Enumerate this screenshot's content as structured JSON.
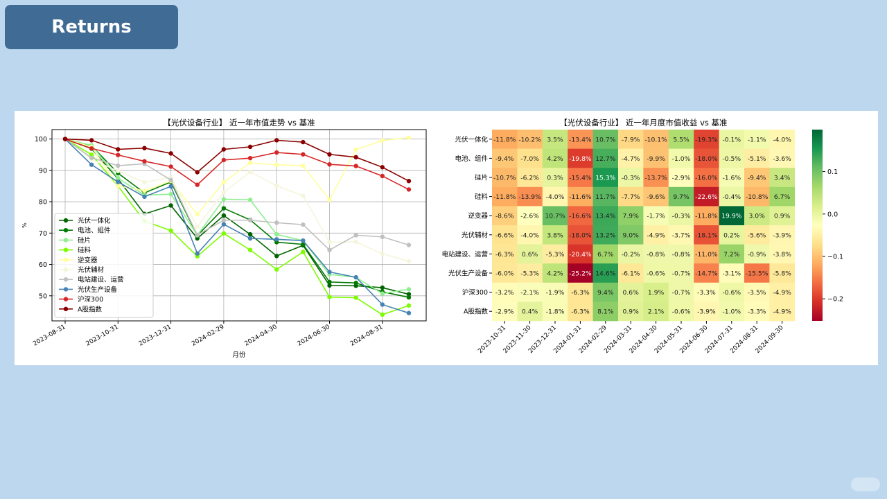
{
  "header": {
    "title": "Returns"
  },
  "chart_data": [
    {
      "type": "line",
      "title": "【光伏设备行业】 近一年市值走势 vs 基准",
      "xlabel": "月份",
      "ylabel": "%",
      "ylim": [
        42,
        103
      ],
      "yticks": [
        50,
        60,
        70,
        80,
        90,
        100
      ],
      "x": [
        "2023-08-31",
        "2023-09-30",
        "2023-10-31",
        "2023-11-30",
        "2023-12-31",
        "2024-01-31",
        "2024-02-29",
        "2024-03-31",
        "2024-04-30",
        "2024-05-31",
        "2024-06-30",
        "2024-07-31",
        "2024-08-31",
        "2024-09-30"
      ],
      "xticks": [
        "2023-08-31",
        "2023-10-31",
        "2023-12-31",
        "2024-02-29",
        "2024-04-30",
        "2024-06-30",
        "2024-08-31"
      ],
      "grid": true,
      "legend_position": "lower-left",
      "series": [
        {
          "name": "光伏一体化",
          "color": "#006400",
          "values": [
            100,
            96.9,
            87.3,
            76.1,
            78.8,
            68.3,
            75.6,
            69.6,
            62.7,
            66.1,
            53.3,
            53.2,
            52.6,
            50.5
          ]
        },
        {
          "name": "电池、组件",
          "color": "#007a00",
          "values": [
            100,
            97.8,
            89.1,
            82.8,
            86.3,
            69.2,
            77.9,
            74.2,
            67.1,
            66.4,
            54.4,
            54.1,
            51.3,
            49.5
          ]
        },
        {
          "name": "硅片",
          "color": "#90ee90",
          "values": [
            100,
            98.0,
            87.5,
            82.1,
            82.4,
            69.3,
            80.8,
            80.6,
            69.6,
            67.6,
            56.8,
            55.9,
            50.7,
            52.1
          ]
        },
        {
          "name": "硅料",
          "color": "#7cfc00",
          "values": [
            100,
            95.0,
            85.0,
            73.8,
            70.8,
            62.6,
            69.9,
            64.6,
            58.4,
            64.0,
            49.6,
            49.4,
            44.0,
            46.9
          ]
        },
        {
          "name": "逆变器",
          "color": "#ffffa0",
          "values": [
            100,
            97.5,
            85.0,
            83.5,
            86.6,
            76.0,
            86.2,
            92.4,
            91.8,
            91.5,
            80.6,
            96.6,
            99.5,
            100.4
          ]
        },
        {
          "name": "光伏辅材",
          "color": "#f5f5dc",
          "values": [
            100,
            93.5,
            89.8,
            86.2,
            87.8,
            72.0,
            83.0,
            89.5,
            85.1,
            81.9,
            67.1,
            67.2,
            63.4,
            61.0
          ]
        },
        {
          "name": "电站建设、运营",
          "color": "#c0c0c0",
          "values": [
            100,
            94.0,
            91.5,
            92.1,
            86.9,
            69.4,
            74.1,
            74.1,
            73.3,
            72.7,
            64.6,
            69.3,
            68.8,
            66.2
          ]
        },
        {
          "name": "光伏生产设备",
          "color": "#4682b4",
          "values": [
            100,
            91.8,
            86.3,
            81.6,
            84.9,
            63.5,
            72.8,
            68.3,
            68.0,
            67.6,
            57.6,
            55.9,
            47.2,
            44.5
          ]
        },
        {
          "name": "沪深300",
          "color": "#d62728",
          "values": [
            100,
            97.0,
            94.9,
            92.9,
            91.2,
            85.4,
            93.3,
            93.9,
            95.7,
            95.1,
            91.9,
            91.4,
            88.2,
            83.9
          ]
        },
        {
          "name": "A股指数",
          "color": "#8b0000",
          "values": [
            100,
            99.6,
            96.7,
            97.1,
            95.4,
            89.4,
            96.7,
            97.5,
            99.6,
            99.0,
            95.1,
            94.2,
            91.0,
            86.6
          ]
        }
      ]
    },
    {
      "type": "heatmap",
      "title": "【光伏设备行业】 近一年月度市值收益 vs 基准",
      "columns": [
        "2023-10-31",
        "2023-11-30",
        "2023-12-31",
        "2024-01-31",
        "2024-02-29",
        "2024-03-31",
        "2024-04-30",
        "2024-05-31",
        "2024-06-30",
        "2024-07-31",
        "2024-08-31",
        "2024-09-30"
      ],
      "rows": [
        "光伏一体化",
        "电池、组件",
        "硅片",
        "硅料",
        "逆变器",
        "光伏辅材",
        "电站建设、运营",
        "光伏生产设备",
        "沪深300",
        "A股指数"
      ],
      "values": [
        [
          -11.8,
          -10.2,
          3.5,
          -13.4,
          10.7,
          -7.9,
          -10.1,
          5.5,
          -19.3,
          -0.1,
          -1.1,
          -4.0
        ],
        [
          -9.4,
          -7.0,
          4.2,
          -19.8,
          12.7,
          -4.7,
          -9.9,
          -1.0,
          -18.0,
          -0.5,
          -5.1,
          -3.6
        ],
        [
          -10.7,
          -6.2,
          0.3,
          -15.4,
          15.3,
          -0.3,
          -13.7,
          -2.9,
          -16.0,
          -1.6,
          -9.4,
          3.4
        ],
        [
          -11.8,
          -13.9,
          -4.0,
          -11.6,
          11.7,
          -7.7,
          -9.6,
          9.7,
          -22.6,
          -0.4,
          -10.8,
          6.7
        ],
        [
          -8.6,
          -2.6,
          10.7,
          -16.6,
          13.4,
          7.9,
          -1.7,
          -0.3,
          -11.8,
          19.9,
          3.0,
          0.9
        ],
        [
          -6.6,
          -4.0,
          3.8,
          -18.0,
          13.2,
          9.0,
          -4.9,
          -3.7,
          -18.1,
          0.2,
          -5.6,
          -3.9
        ],
        [
          -6.3,
          0.6,
          -5.3,
          -20.4,
          6.7,
          -0.2,
          -0.8,
          -0.8,
          -11.0,
          7.2,
          -0.9,
          -3.8
        ],
        [
          -6.0,
          -5.3,
          4.2,
          -25.2,
          14.6,
          -6.1,
          -0.6,
          -0.7,
          -14.7,
          -3.1,
          -15.5,
          -5.8
        ],
        [
          -3.2,
          -2.1,
          -1.9,
          -6.3,
          9.4,
          0.6,
          1.9,
          -0.7,
          -3.3,
          -0.6,
          -3.5,
          -4.9
        ],
        [
          -2.9,
          0.4,
          -1.8,
          -6.3,
          8.1,
          0.9,
          2.1,
          -0.6,
          -3.9,
          -1.0,
          -3.3,
          -4.9
        ]
      ],
      "value_format": "percent, 1 decimal",
      "colormap": "RdYlGn",
      "vmin": -0.252,
      "vmax": 0.199,
      "colorbar_ticks": [
        -0.2,
        -0.1,
        0.0,
        0.1
      ],
      "colorbar_tick_labels": [
        "−0.2",
        "−0.1",
        "0.0",
        "0.1"
      ]
    }
  ]
}
